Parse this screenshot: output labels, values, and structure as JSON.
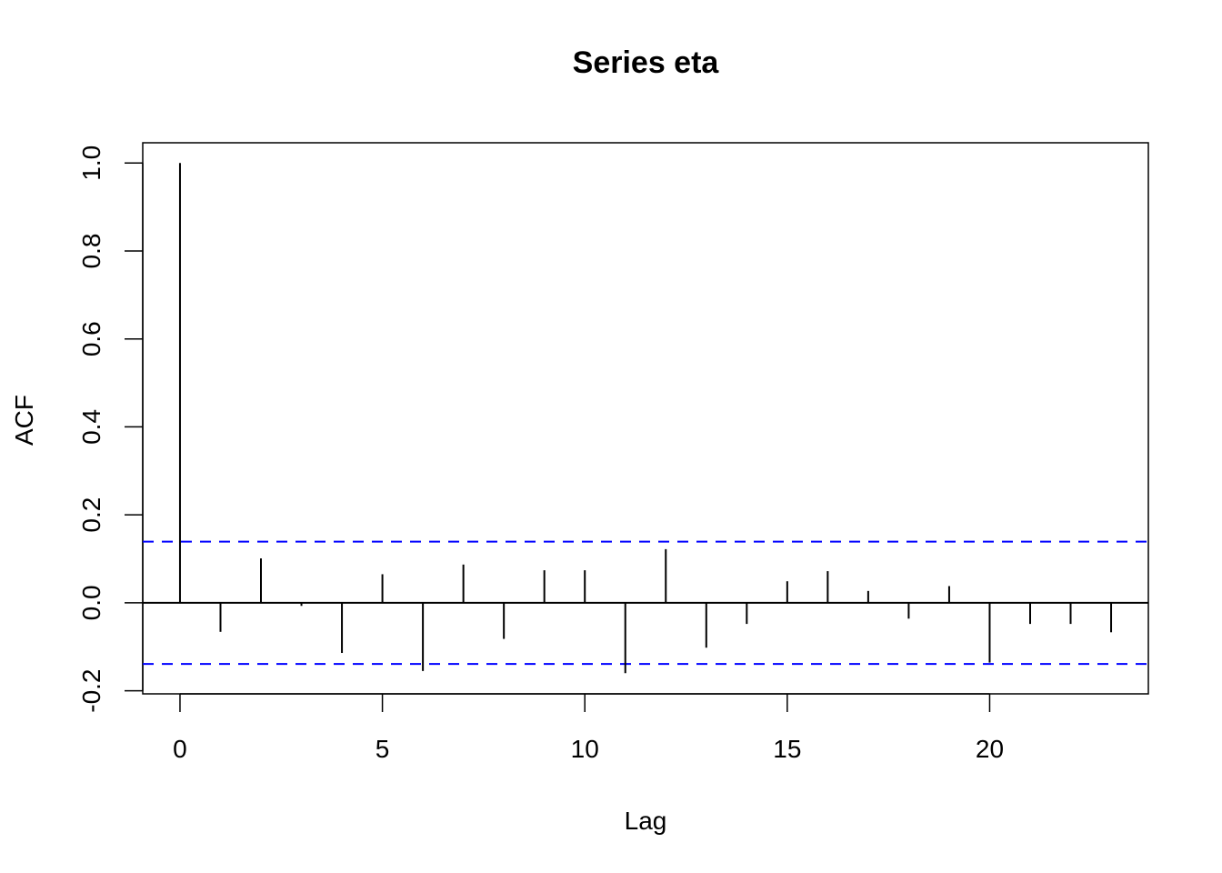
{
  "chart_data": {
    "type": "bar",
    "title": "Series  eta",
    "xlabel": "Lag",
    "ylabel": "ACF",
    "xlim": [
      -0.92,
      23.92
    ],
    "ylim": [
      -0.207,
      1.046
    ],
    "xticks": [
      0,
      5,
      10,
      15,
      20
    ],
    "xtick_labels": [
      "0",
      "5",
      "10",
      "15",
      "20"
    ],
    "yticks": [
      -0.2,
      0.0,
      0.2,
      0.4,
      0.6,
      0.8,
      1.0
    ],
    "ytick_labels": [
      "-0.2",
      "0.0",
      "0.2",
      "0.4",
      "0.6",
      "0.8",
      "1.0"
    ],
    "grid": false,
    "lags": [
      0,
      1,
      2,
      3,
      4,
      5,
      6,
      7,
      8,
      9,
      10,
      11,
      12,
      13,
      14,
      15,
      16,
      17,
      18,
      19,
      20,
      21,
      22,
      23
    ],
    "values": [
      1.0,
      -0.066,
      0.101,
      -0.007,
      -0.114,
      0.065,
      -0.155,
      0.087,
      -0.082,
      0.074,
      0.074,
      -0.16,
      0.122,
      -0.102,
      -0.048,
      0.049,
      0.072,
      0.027,
      -0.036,
      0.038,
      -0.136,
      -0.048,
      -0.048,
      -0.067
    ],
    "confidence_bound": 0.139,
    "colors": {
      "bars": "#000000",
      "confidence": "#0000ff"
    }
  }
}
